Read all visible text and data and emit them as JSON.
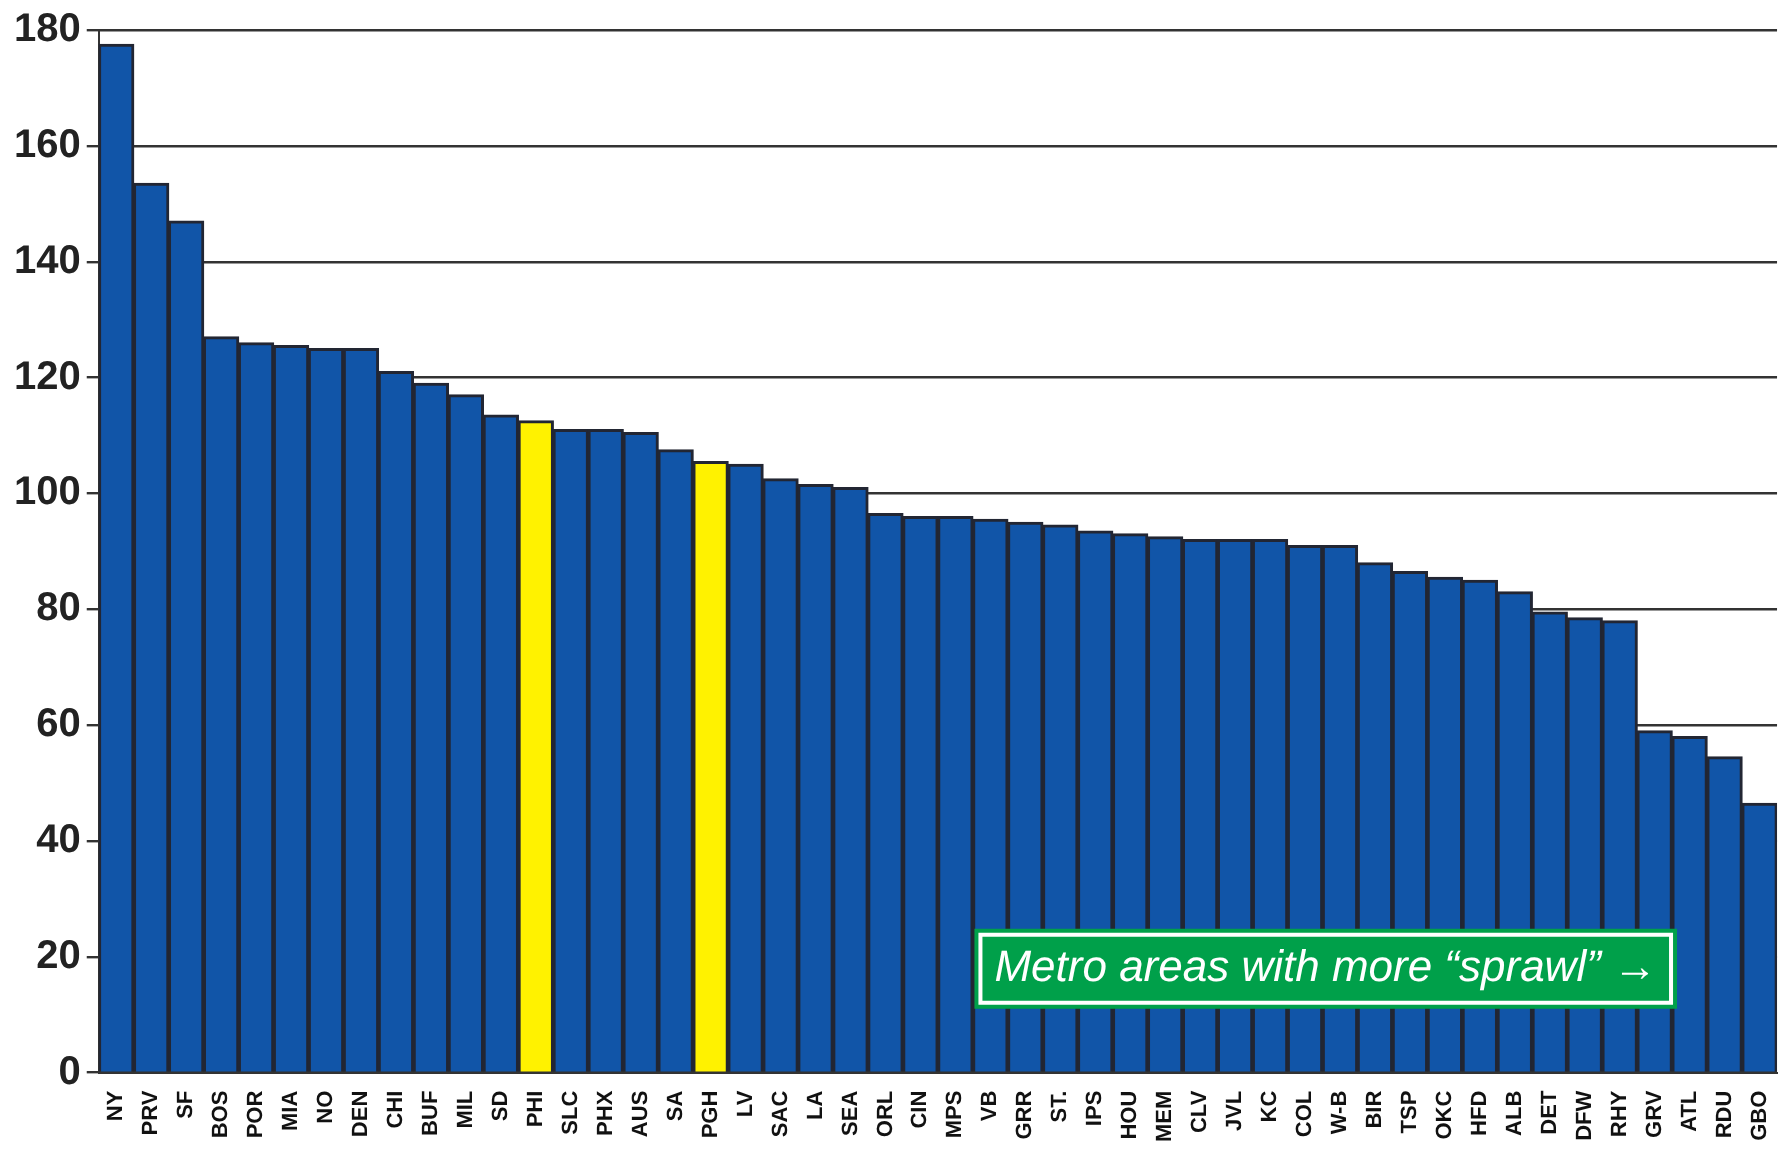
{
  "chart_data": {
    "type": "bar",
    "categories": [
      "NY",
      "PRV",
      "SF",
      "BOS",
      "POR",
      "MIA",
      "NO",
      "DEN",
      "CHI",
      "BUF",
      "MIL",
      "SD",
      "PHI",
      "SLC",
      "PHX",
      "AUS",
      "SA",
      "PGH",
      "LV",
      "SAC",
      "LA",
      "SEA",
      "ORL",
      "CIN",
      "MPS",
      "VB",
      "GRR",
      "ST.",
      "IPS",
      "HOU",
      "MEM",
      "CLV",
      "JVL",
      "KC",
      "COL",
      "W-B",
      "BIR",
      "TSP",
      "OKC",
      "HFD",
      "ALB",
      "DET",
      "DFW",
      "RHY",
      "GRV",
      "ATL",
      "RDU",
      "GBO"
    ],
    "values": [
      177.5,
      153.5,
      147,
      127,
      126,
      125.5,
      125,
      125,
      121,
      119,
      117,
      113.5,
      112.5,
      111,
      111,
      110.5,
      107.5,
      105.5,
      105,
      102.5,
      101.5,
      101,
      96.5,
      96,
      96,
      95.5,
      95,
      94.5,
      93.5,
      93,
      92.5,
      92,
      92,
      92,
      91,
      91,
      88,
      86.5,
      85.5,
      85,
      83,
      79.5,
      78.5,
      78,
      59,
      58,
      54.5,
      46.5
    ],
    "colors": [
      "#1155a8",
      "#1155a8",
      "#1155a8",
      "#1155a8",
      "#1155a8",
      "#1155a8",
      "#1155a8",
      "#1155a8",
      "#1155a8",
      "#1155a8",
      "#1155a8",
      "#1155a8",
      "#fff200",
      "#1155a8",
      "#1155a8",
      "#1155a8",
      "#1155a8",
      "#fff200",
      "#1155a8",
      "#1155a8",
      "#1155a8",
      "#1155a8",
      "#1155a8",
      "#1155a8",
      "#1155a8",
      "#1155a8",
      "#1155a8",
      "#1155a8",
      "#1155a8",
      "#1155a8",
      "#1155a8",
      "#1155a8",
      "#1155a8",
      "#1155a8",
      "#1155a8",
      "#1155a8",
      "#1155a8",
      "#1155a8",
      "#1155a8",
      "#1155a8",
      "#1155a8",
      "#1155a8",
      "#1155a8",
      "#1155a8",
      "#1155a8",
      "#1155a8",
      "#1155a8",
      "#1155a8"
    ],
    "ylim": [
      0,
      180
    ],
    "yticks": [
      0,
      20,
      40,
      60,
      80,
      100,
      120,
      140,
      160,
      180
    ],
    "grid": "y",
    "legend": false,
    "annotations": [
      "Metro areas with more “sprawl” →"
    ]
  }
}
